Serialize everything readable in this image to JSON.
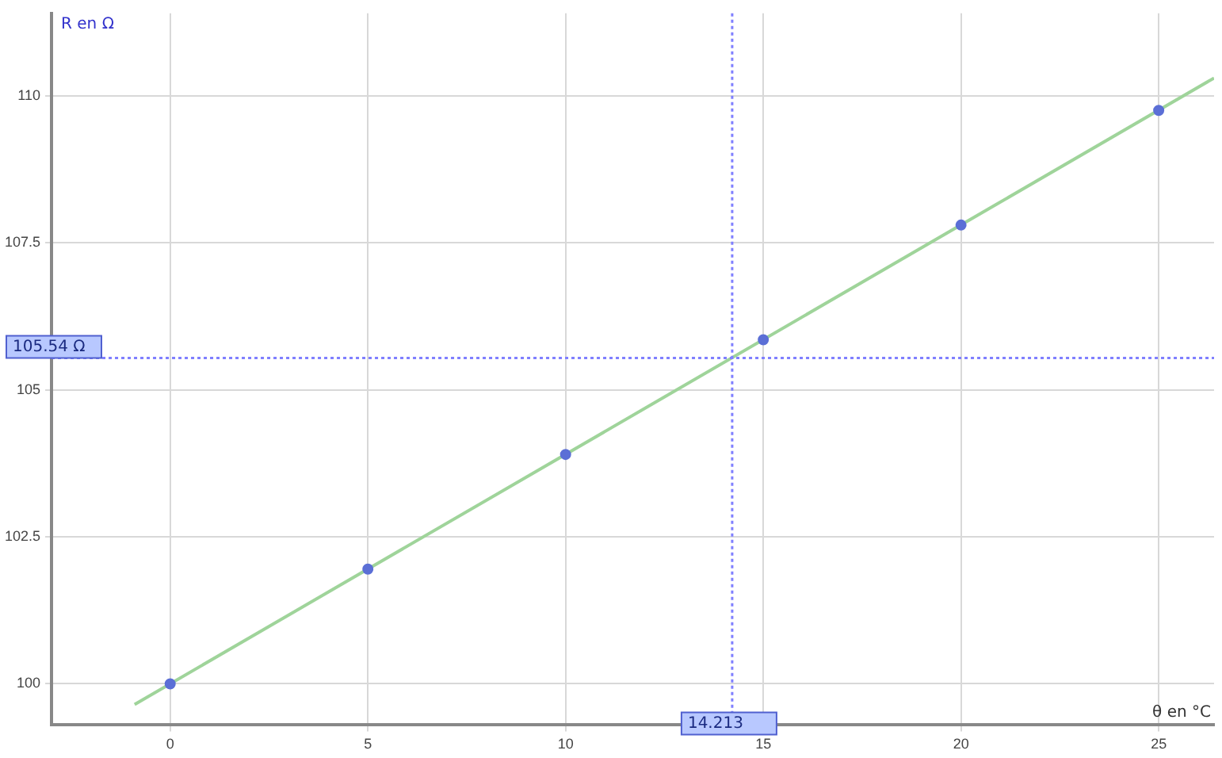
{
  "chart_data": {
    "type": "scatter",
    "xlabel": "θ en °C",
    "ylabel": "R en Ω",
    "xlim": [
      -3,
      26.4
    ],
    "ylim": [
      99.3,
      111.4
    ],
    "xticks": [
      0,
      5,
      10,
      15,
      20,
      25
    ],
    "yticks": [
      100,
      102.5,
      105,
      107.5,
      110
    ],
    "grid": true,
    "legend": false,
    "marker": "circle",
    "series": [
      {
        "color": "#5b6fd6",
        "x": [
          0,
          5,
          10,
          15,
          20,
          25
        ],
        "values": [
          100,
          101.95,
          103.9,
          105.85,
          107.8,
          109.75
        ]
      },
      {
        "type": "line",
        "color": "#9fd49a",
        "marker": "none",
        "x": [
          -0.9,
          26.4
        ],
        "values": [
          99.65,
          110.3
        ]
      }
    ],
    "ref_lines": [
      {
        "axis": "x",
        "value": 14.213,
        "label": "14.213",
        "color": "#7f7fff",
        "line_style": "dotted"
      },
      {
        "axis": "y",
        "value": 105.54,
        "label": "105.54 Ω",
        "color": "#7f7fff",
        "line_style": "dotted"
      }
    ]
  }
}
